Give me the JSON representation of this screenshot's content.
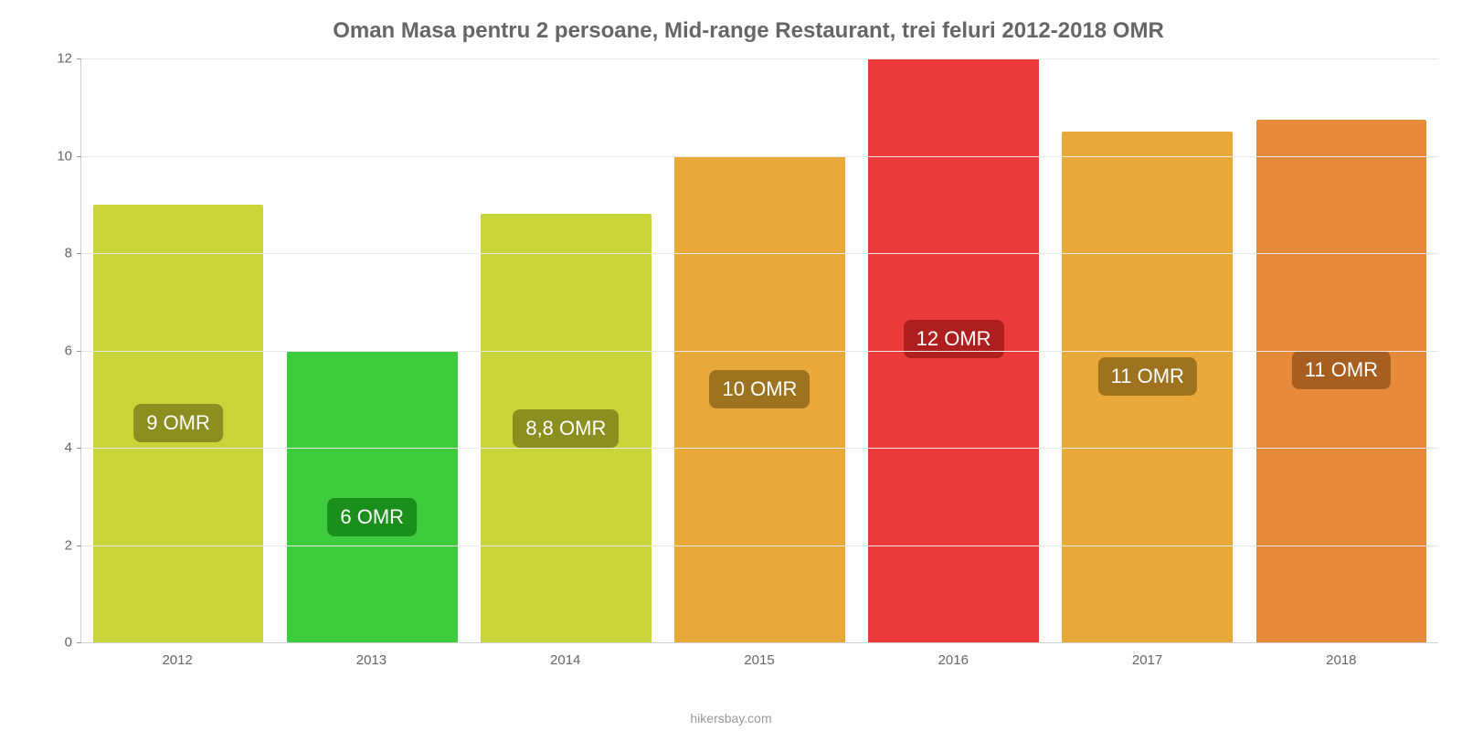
{
  "chart": {
    "type": "bar",
    "title": "Oman Masa pentru 2 persoane, Mid-range Restaurant, trei feluri 2012-2018 OMR",
    "title_fontsize": 24,
    "title_color": "#666666",
    "background_color": "#ffffff",
    "grid_color": "#e8e8e8",
    "axis_color": "#d0d0d0",
    "tick_label_color": "#666666",
    "tick_fontsize": 15,
    "bar_width_ratio": 0.88,
    "label_fontsize": 22,
    "x": {
      "categories": [
        "2012",
        "2013",
        "2014",
        "2015",
        "2016",
        "2017",
        "2018"
      ]
    },
    "y": {
      "min": 0,
      "max": 12,
      "ticks": [
        0,
        2,
        4,
        6,
        8,
        10,
        12
      ]
    },
    "bars": [
      {
        "value": 9.0,
        "label": "9 OMR",
        "fill": "#c8d438",
        "label_bg": "#8b8f1f",
        "label_top_pct": 50
      },
      {
        "value": 6.0,
        "label": "6 OMR",
        "fill": "#3ecc3e",
        "label_bg": "#1b8f1b",
        "label_top_pct": 57
      },
      {
        "value": 8.8,
        "label": "8,8 OMR",
        "fill": "#c8d438",
        "label_bg": "#8b8f1f",
        "label_top_pct": 50
      },
      {
        "value": 10.0,
        "label": "10 OMR",
        "fill": "#e8a93a",
        "label_bg": "#9e7320",
        "label_top_pct": 48
      },
      {
        "value": 12.0,
        "label": "12 OMR",
        "fill": "#ea3a3a",
        "label_bg": "#b01f1f",
        "label_top_pct": 48
      },
      {
        "value": 10.5,
        "label": "11 OMR",
        "fill": "#e8a93a",
        "label_bg": "#9e7320",
        "label_top_pct": 48
      },
      {
        "value": 10.75,
        "label": "11 OMR",
        "fill": "#e78a3a",
        "label_bg": "#a85e20",
        "label_top_pct": 48
      }
    ],
    "watermark": "hikersbay.com"
  }
}
